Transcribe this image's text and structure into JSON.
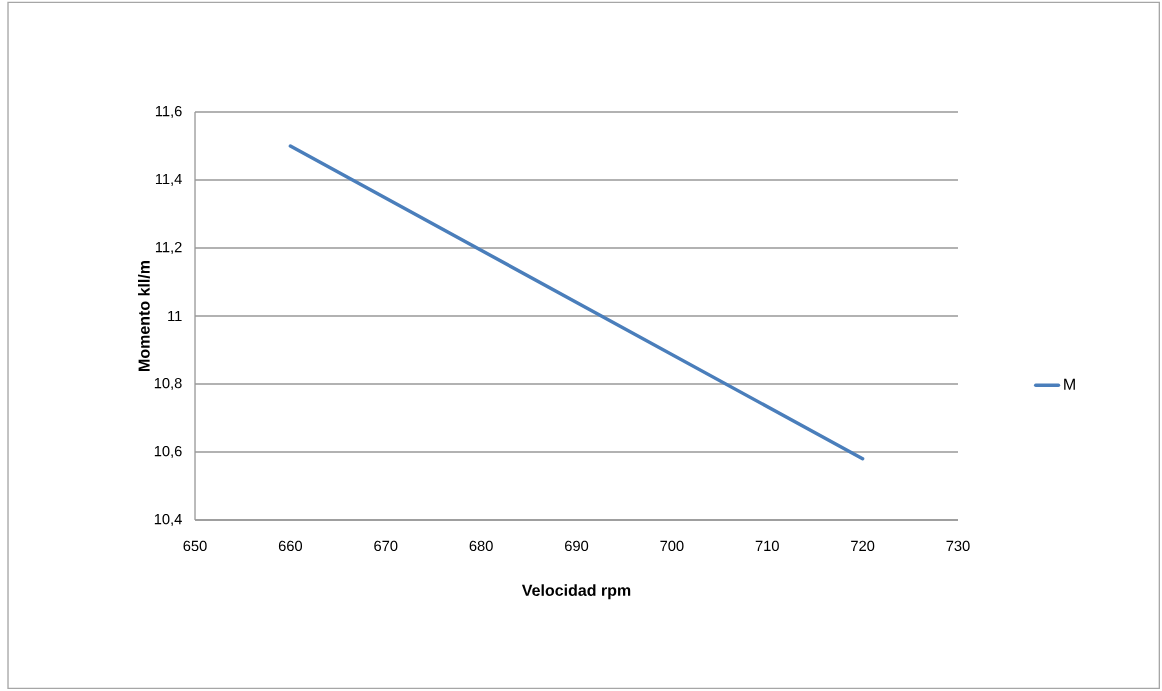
{
  "chart_data": {
    "type": "line",
    "xlabel": "Velocidad rpm",
    "ylabel": "Momento kll/m",
    "x": [
      660,
      720
    ],
    "series": [
      {
        "name": "M",
        "color": "#4a7ebb",
        "values": [
          11.5,
          10.58
        ]
      }
    ],
    "xlim": [
      650,
      730
    ],
    "xticks": [
      650,
      660,
      670,
      680,
      690,
      700,
      710,
      720,
      730
    ],
    "ylim": [
      10.4,
      11.6
    ],
    "yticks": [
      {
        "value": 10.4,
        "label": "10,4"
      },
      {
        "value": 10.6,
        "label": "10,6"
      },
      {
        "value": 10.8,
        "label": "10,8"
      },
      {
        "value": 11,
        "label": "11"
      },
      {
        "value": 11.2,
        "label": "11,2"
      },
      {
        "value": 11.4,
        "label": "11,4"
      },
      {
        "value": 11.6,
        "label": "11,6"
      }
    ],
    "grid": "y",
    "legend": "right",
    "marker": "none",
    "line_style": "solid"
  }
}
